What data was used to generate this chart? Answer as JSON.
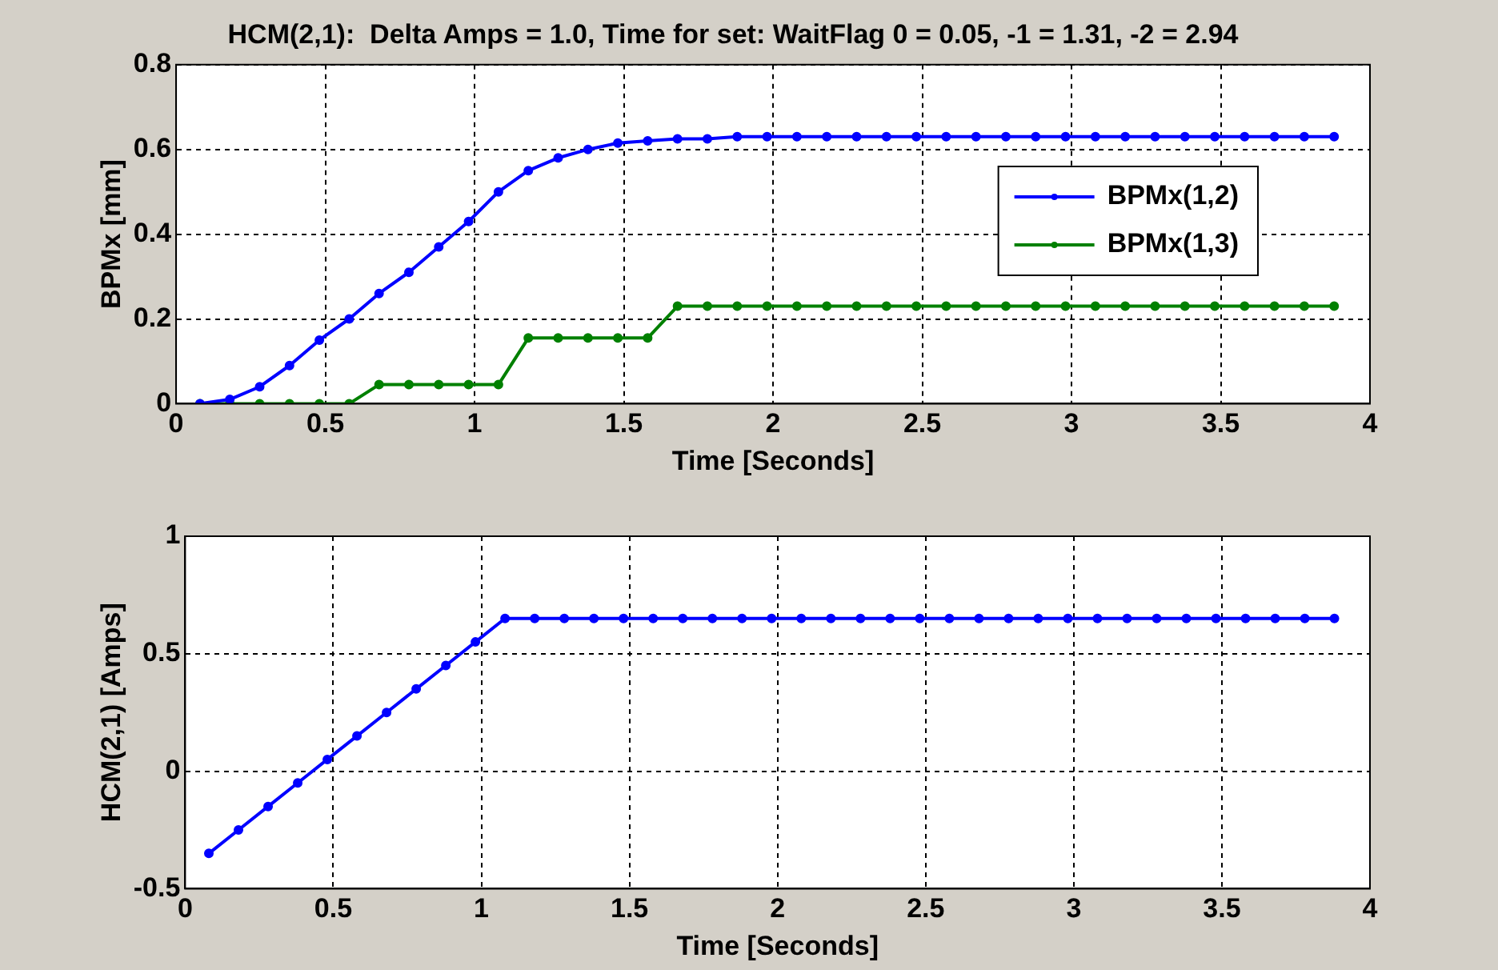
{
  "chart_data": [
    {
      "type": "line",
      "title": "HCM(2,1):  Delta Amps = 1.0, Time for set: WaitFlag 0 = 0.05, -1 = 1.31, -2 = 2.94",
      "xlabel": "Time [Seconds]",
      "ylabel": "BPMx [mm]",
      "x": [
        0.08,
        0.18,
        0.28,
        0.38,
        0.48,
        0.58,
        0.68,
        0.78,
        0.88,
        0.98,
        1.08,
        1.18,
        1.28,
        1.38,
        1.48,
        1.58,
        1.68,
        1.78,
        1.88,
        1.98,
        2.08,
        2.18,
        2.28,
        2.38,
        2.48,
        2.58,
        2.68,
        2.78,
        2.88,
        2.98,
        3.08,
        3.18,
        3.28,
        3.38,
        3.48,
        3.58,
        3.68,
        3.78,
        3.88
      ],
      "series": [
        {
          "name": "BPMx(1,2)",
          "color": "#0000ff",
          "values": [
            0,
            0.01,
            0.04,
            0.09,
            0.15,
            0.2,
            0.26,
            0.31,
            0.37,
            0.43,
            0.5,
            0.55,
            0.58,
            0.6,
            0.615,
            0.62,
            0.625,
            0.625,
            0.63,
            0.63,
            0.63,
            0.63,
            0.63,
            0.63,
            0.63,
            0.63,
            0.63,
            0.63,
            0.63,
            0.63,
            0.63,
            0.63,
            0.63,
            0.63,
            0.63,
            0.63,
            0.63,
            0.63,
            0.63
          ]
        },
        {
          "name": "BPMx(1,3)",
          "color": "#008000",
          "values": [
            0,
            0,
            0,
            0,
            0,
            0,
            0.045,
            0.045,
            0.045,
            0.045,
            0.045,
            0.155,
            0.155,
            0.155,
            0.155,
            0.155,
            0.23,
            0.23,
            0.23,
            0.23,
            0.23,
            0.23,
            0.23,
            0.23,
            0.23,
            0.23,
            0.23,
            0.23,
            0.23,
            0.23,
            0.23,
            0.23,
            0.23,
            0.23,
            0.23,
            0.23,
            0.23,
            0.23,
            0.23
          ]
        }
      ],
      "xlim": [
        0,
        4
      ],
      "xticks": [
        0,
        0.5,
        1,
        1.5,
        2,
        2.5,
        3,
        3.5,
        4
      ],
      "ylim": [
        0,
        0.8
      ],
      "yticks": [
        0,
        0.2,
        0.4,
        0.6,
        0.8
      ],
      "grid": true,
      "legend": "right",
      "marker": "circle",
      "line_style": "solid"
    },
    {
      "type": "line",
      "xlabel": "Time [Seconds]",
      "ylabel": "HCM(2,1) [Amps]",
      "x": [
        0.08,
        0.18,
        0.28,
        0.38,
        0.48,
        0.58,
        0.68,
        0.78,
        0.88,
        0.98,
        1.08,
        1.18,
        1.28,
        1.38,
        1.48,
        1.58,
        1.68,
        1.78,
        1.88,
        1.98,
        2.08,
        2.18,
        2.28,
        2.38,
        2.48,
        2.58,
        2.68,
        2.78,
        2.88,
        2.98,
        3.08,
        3.18,
        3.28,
        3.38,
        3.48,
        3.58,
        3.68,
        3.78,
        3.88
      ],
      "series": [
        {
          "color": "#0000ff",
          "values": [
            -0.35,
            -0.25,
            -0.15,
            -0.05,
            0.05,
            0.15,
            0.25,
            0.35,
            0.45,
            0.55,
            0.65,
            0.65,
            0.65,
            0.65,
            0.65,
            0.65,
            0.65,
            0.65,
            0.65,
            0.65,
            0.65,
            0.65,
            0.65,
            0.65,
            0.65,
            0.65,
            0.65,
            0.65,
            0.65,
            0.65,
            0.65,
            0.65,
            0.65,
            0.65,
            0.65,
            0.65,
            0.65,
            0.65,
            0.65
          ]
        }
      ],
      "xlim": [
        0,
        4
      ],
      "xticks": [
        0,
        0.5,
        1,
        1.5,
        2,
        2.5,
        3,
        3.5,
        4
      ],
      "ylim": [
        -0.5,
        1
      ],
      "yticks": [
        -0.5,
        0,
        0.5,
        1
      ],
      "grid": true,
      "marker": "circle",
      "line_style": "solid"
    }
  ]
}
